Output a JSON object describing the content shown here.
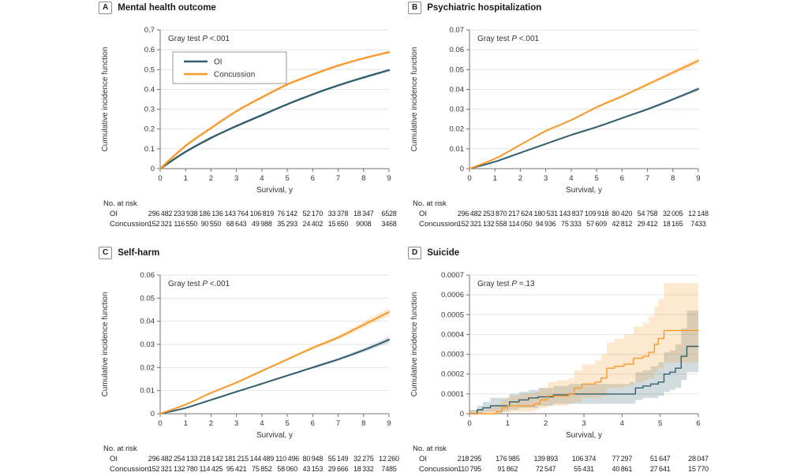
{
  "figure": {
    "no_at_risk_label": "No. at risk",
    "colors": {
      "oi": "#315f6d",
      "concussion": "#f8992b",
      "band_opacity": 0.22,
      "grid": "#e4e4e4",
      "axis": "#707070",
      "text": "#333333"
    }
  },
  "chart_data": [
    {
      "type": "line",
      "letter": "A",
      "title": "Mental health outcome",
      "annotation": {
        "prefix": "Gray test ",
        "p": "P",
        "suffix": " <.001"
      },
      "xlabel": "Survival, y",
      "ylabel": "Cumulative incidence function",
      "xlim": [
        0,
        9
      ],
      "ylim": [
        0,
        0.7
      ],
      "xticks": [
        "0",
        "1",
        "2",
        "3",
        "4",
        "5",
        "6",
        "7",
        "8",
        "9"
      ],
      "yticks": [
        "0",
        "0.1",
        "0.2",
        "0.3",
        "0.4",
        "0.5",
        "0.6",
        "0.7"
      ],
      "grid": "horizontal",
      "legend": true,
      "legend_position": "upper-left",
      "line_width": 2.4,
      "series": [
        {
          "name": "OI",
          "key": "oi",
          "x": [
            0,
            1,
            2,
            3,
            4,
            5,
            6,
            7,
            8,
            9
          ],
          "y": [
            0,
            0.085,
            0.155,
            0.215,
            0.27,
            0.325,
            0.375,
            0.42,
            0.46,
            0.497
          ]
        },
        {
          "name": "Concussion",
          "key": "concussion",
          "x": [
            0,
            1,
            2,
            3,
            4,
            5,
            6,
            7,
            8,
            9
          ],
          "y": [
            0,
            0.115,
            0.205,
            0.29,
            0.36,
            0.425,
            0.475,
            0.52,
            0.557,
            0.588
          ]
        }
      ],
      "risk_rows": [
        {
          "label": "OI",
          "values": [
            "296 482",
            "233 938",
            "186 136",
            "143 764",
            "106 819",
            "76 142",
            "52 170",
            "33 378",
            "18 347",
            "6528"
          ]
        },
        {
          "label": "Concussion",
          "values": [
            "152 321",
            "116 550",
            "90 550",
            "68 643",
            "49 988",
            "35 293",
            "24 402",
            "15 650",
            "9008",
            "3468"
          ]
        }
      ]
    },
    {
      "type": "line",
      "letter": "B",
      "title": "Psychiatric hospitalization",
      "annotation": {
        "prefix": "Gray test ",
        "p": "P",
        "suffix": " <.001"
      },
      "xlabel": "Survival, y",
      "ylabel": "Cumulative incidence function",
      "xlim": [
        0,
        9
      ],
      "ylim": [
        0,
        0.07
      ],
      "xticks": [
        "0",
        "1",
        "2",
        "3",
        "4",
        "5",
        "6",
        "7",
        "8",
        "9"
      ],
      "yticks": [
        "0",
        "0.01",
        "0.02",
        "0.03",
        "0.04",
        "0.05",
        "0.06",
        "0.07"
      ],
      "grid": "horizontal",
      "legend": false,
      "line_width": 2,
      "series": [
        {
          "name": "OI",
          "key": "oi",
          "x": [
            0,
            1,
            2,
            3,
            4,
            5,
            6,
            7,
            8,
            9
          ],
          "y": [
            0,
            0.0035,
            0.008,
            0.0125,
            0.017,
            0.021,
            0.0255,
            0.03,
            0.035,
            0.0402
          ],
          "lower": [
            0,
            0.0033,
            0.0077,
            0.0121,
            0.0166,
            0.0205,
            0.025,
            0.0294,
            0.0343,
            0.0392
          ],
          "upper": [
            0,
            0.0037,
            0.0083,
            0.0129,
            0.0174,
            0.0215,
            0.026,
            0.0306,
            0.0357,
            0.0412
          ]
        },
        {
          "name": "Concussion",
          "key": "concussion",
          "x": [
            0,
            1,
            2,
            3,
            4,
            5,
            6,
            7,
            8,
            9
          ],
          "y": [
            0,
            0.005,
            0.012,
            0.019,
            0.0245,
            0.031,
            0.0365,
            0.0425,
            0.0485,
            0.0545
          ],
          "lower": [
            0,
            0.0048,
            0.0117,
            0.0186,
            0.024,
            0.0304,
            0.0358,
            0.0417,
            0.0474,
            0.0531
          ],
          "upper": [
            0,
            0.0052,
            0.0123,
            0.0194,
            0.025,
            0.0316,
            0.0372,
            0.0433,
            0.0496,
            0.0559
          ]
        }
      ],
      "risk_rows": [
        {
          "label": "OI",
          "values": [
            "296 482",
            "253 870",
            "217 624",
            "180 531",
            "143 837",
            "109 918",
            "80 420",
            "54 758",
            "32 005",
            "12 148"
          ]
        },
        {
          "label": "Concussion",
          "values": [
            "152 321",
            "132 558",
            "114 050",
            "94 936",
            "75 333",
            "57 609",
            "42 812",
            "29 412",
            "18 165",
            "7433"
          ]
        }
      ]
    },
    {
      "type": "line",
      "letter": "C",
      "title": "Self-harm",
      "annotation": {
        "prefix": "Gray test ",
        "p": "P",
        "suffix": " <.001"
      },
      "xlabel": "Survival, y",
      "ylabel": "Cumulative incidence function",
      "xlim": [
        0,
        9
      ],
      "ylim": [
        0,
        0.06
      ],
      "xticks": [
        "0",
        "1",
        "2",
        "3",
        "4",
        "5",
        "6",
        "7",
        "8",
        "9"
      ],
      "yticks": [
        "0",
        "0.01",
        "0.02",
        "0.03",
        "0.04",
        "0.05",
        "0.06"
      ],
      "grid": "horizontal",
      "legend": false,
      "line_width": 2,
      "series": [
        {
          "name": "OI",
          "key": "oi",
          "x": [
            0,
            1,
            2,
            3,
            4,
            5,
            6,
            7,
            8,
            9
          ],
          "y": [
            0,
            0.0025,
            0.006,
            0.0095,
            0.013,
            0.0165,
            0.02,
            0.0235,
            0.0275,
            0.032
          ],
          "lower": [
            0,
            0.0023,
            0.0057,
            0.0092,
            0.0126,
            0.0161,
            0.0195,
            0.0229,
            0.0267,
            0.0308
          ],
          "upper": [
            0,
            0.0027,
            0.0063,
            0.0098,
            0.0134,
            0.0169,
            0.0205,
            0.0241,
            0.0283,
            0.0332
          ]
        },
        {
          "name": "Concussion",
          "key": "concussion",
          "x": [
            0,
            1,
            2,
            3,
            4,
            5,
            6,
            7,
            8,
            9
          ],
          "y": [
            0,
            0.004,
            0.009,
            0.0135,
            0.0185,
            0.0235,
            0.0285,
            0.033,
            0.0385,
            0.044
          ],
          "lower": [
            0,
            0.0038,
            0.0087,
            0.0131,
            0.018,
            0.0229,
            0.0278,
            0.0321,
            0.0373,
            0.0423
          ],
          "upper": [
            0,
            0.0042,
            0.0093,
            0.0139,
            0.019,
            0.0241,
            0.0292,
            0.0339,
            0.0397,
            0.0457
          ]
        }
      ],
      "risk_rows": [
        {
          "label": "OI",
          "values": [
            "296 482",
            "254 133",
            "218 142",
            "181 215",
            "144 489",
            "110 496",
            "80 948",
            "55 149",
            "32 275",
            "12 260"
          ]
        },
        {
          "label": "Concussion",
          "values": [
            "152 321",
            "132 780",
            "114 425",
            "95 421",
            "75 852",
            "58 060",
            "43 153",
            "29 666",
            "18 332",
            "7485"
          ]
        }
      ]
    },
    {
      "type": "line",
      "interpolation": "step",
      "letter": "D",
      "title": "Suicide",
      "annotation": {
        "prefix": "Gray test ",
        "p": "P",
        "suffix": " =.13"
      },
      "xlabel": "Survival, y",
      "ylabel": "Cumulative incidence function",
      "xlim": [
        0,
        6
      ],
      "ylim": [
        0,
        0.0007
      ],
      "xticks": [
        "0",
        "1",
        "2",
        "3",
        "4",
        "5",
        "6"
      ],
      "yticks": [
        "0",
        "0.0001",
        "0.0002",
        "0.0003",
        "0.0004",
        "0.0005",
        "0.0006",
        "0.0007"
      ],
      "grid": "horizontal",
      "legend": false,
      "line_width": 1.4,
      "series": [
        {
          "name": "OI",
          "key": "oi",
          "x": [
            0,
            0.2,
            0.35,
            0.55,
            0.8,
            1.05,
            1.3,
            1.55,
            1.8,
            2.2,
            2.6,
            4.2,
            4.35,
            4.55,
            4.75,
            4.95,
            5.1,
            5.25,
            5.4,
            5.55,
            5.7,
            6.0
          ],
          "y": [
            0,
            2e-05,
            3e-05,
            4e-05,
            4e-05,
            6e-05,
            7e-05,
            8e-05,
            8.5e-05,
            9.5e-05,
            0.0001,
            0.0001,
            0.00013,
            0.00014,
            0.00015,
            0.00016,
            0.0002,
            0.00021,
            0.00023,
            0.00029,
            0.00034,
            0.00034
          ],
          "lower": [
            0,
            0,
            1e-05,
            1e-05,
            1e-05,
            2e-05,
            3e-05,
            3e-05,
            4e-05,
            5e-05,
            5e-05,
            5e-05,
            7e-05,
            8e-05,
            8e-05,
            9e-05,
            0.00011,
            0.00012,
            0.00013,
            0.00017,
            0.00021,
            0.00021
          ],
          "upper": [
            2e-05,
            4e-05,
            6e-05,
            8e-05,
            8e-05,
            0.0001,
            0.00011,
            0.00012,
            0.00013,
            0.00014,
            0.00015,
            0.00016,
            0.00021,
            0.00022,
            0.00024,
            0.00026,
            0.00031,
            0.00032,
            0.00035,
            0.00043,
            0.00052,
            0.00052
          ]
        },
        {
          "name": "Concussion",
          "key": "concussion",
          "x": [
            0,
            0.55,
            0.7,
            0.85,
            1.0,
            1.35,
            1.7,
            1.85,
            2.05,
            2.3,
            2.6,
            2.75,
            2.95,
            3.3,
            3.45,
            3.6,
            3.8,
            4.05,
            4.3,
            4.55,
            4.7,
            4.85,
            4.95,
            5.1,
            6.0
          ],
          "y": [
            0,
            0,
            1e-05,
            3e-05,
            4e-05,
            4e-05,
            5e-05,
            7e-05,
            9e-05,
            9e-05,
            0.0001,
            0.00013,
            0.00015,
            0.00016,
            0.00018,
            0.00023,
            0.00024,
            0.00025,
            0.00028,
            0.00029,
            0.00031,
            0.00035,
            0.00038,
            0.00042,
            0.00042
          ],
          "lower": [
            0,
            0,
            0,
            1e-05,
            1e-05,
            1e-05,
            2e-05,
            3e-05,
            4e-05,
            4e-05,
            5e-05,
            6e-05,
            8e-05,
            8e-05,
            9e-05,
            0.00013,
            0.00013,
            0.00014,
            0.00016,
            0.00017,
            0.00018,
            0.00021,
            0.00023,
            0.00026,
            0.00026
          ],
          "upper": [
            2e-05,
            4e-05,
            5e-05,
            7e-05,
            9e-05,
            0.0001,
            0.00011,
            0.00013,
            0.00016,
            0.00017,
            0.00018,
            0.00022,
            0.00025,
            0.00027,
            0.0003,
            0.00036,
            0.00038,
            0.0004,
            0.00044,
            0.00046,
            0.00049,
            0.00054,
            0.00058,
            0.00066,
            0.00066
          ]
        }
      ],
      "risk_rows": [
        {
          "label": "OI",
          "values": [
            "218 295",
            "176 985",
            "139 893",
            "106 374",
            "77 297",
            "51 647",
            "28 047"
          ]
        },
        {
          "label": "Concussion",
          "values": [
            "110 795",
            "91 862",
            "72 547",
            "55 431",
            "40 861",
            "27 641",
            "15 770"
          ]
        }
      ]
    }
  ]
}
